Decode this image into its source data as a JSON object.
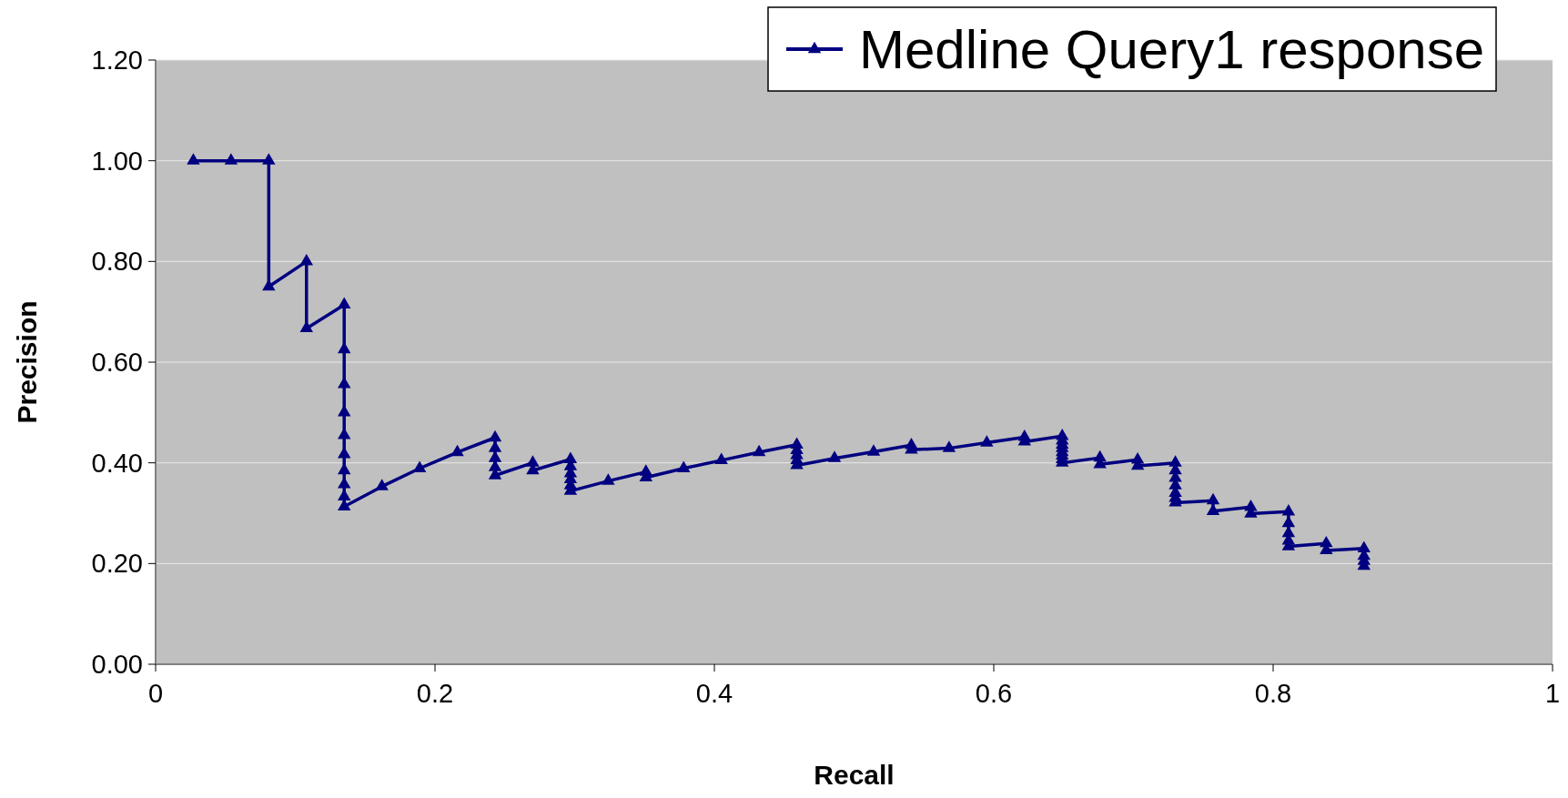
{
  "chart_data": {
    "type": "line",
    "xlabel": "Recall",
    "ylabel": "Precision",
    "xlim": [
      0,
      1
    ],
    "ylim": [
      0,
      1.2
    ],
    "xticks": [
      0,
      0.2,
      0.4,
      0.6,
      0.8,
      1
    ],
    "yticks": [
      {
        "value": 0,
        "label": "0.00"
      },
      {
        "value": 0.2,
        "label": "0.20"
      },
      {
        "value": 0.4,
        "label": "0.40"
      },
      {
        "value": 0.6,
        "label": "0.60"
      },
      {
        "value": 0.8,
        "label": "0.80"
      },
      {
        "value": 1,
        "label": "1.00"
      },
      {
        "value": 1.2,
        "label": "1.20"
      }
    ],
    "grid": "y",
    "legend": "top right",
    "marker": "triangle",
    "line_style": "solid",
    "series": [
      {
        "name": "Medline Query1 response",
        "color": "#000080",
        "x": [
          0.027,
          0.054,
          0.081,
          0.081,
          0.108,
          0.108,
          0.135,
          0.135,
          0.135,
          0.135,
          0.135,
          0.135,
          0.135,
          0.135,
          0.135,
          0.135,
          0.162,
          0.189,
          0.216,
          0.243,
          0.243,
          0.243,
          0.243,
          0.243,
          0.27,
          0.27,
          0.297,
          0.297,
          0.297,
          0.297,
          0.297,
          0.297,
          0.324,
          0.351,
          0.351,
          0.378,
          0.405,
          0.432,
          0.459,
          0.459,
          0.459,
          0.459,
          0.459,
          0.486,
          0.514,
          0.541,
          0.541,
          0.568,
          0.595,
          0.622,
          0.622,
          0.649,
          0.649,
          0.649,
          0.649,
          0.649,
          0.649,
          0.649,
          0.649,
          0.676,
          0.676,
          0.703,
          0.703,
          0.73,
          0.73,
          0.73,
          0.73,
          0.73,
          0.73,
          0.73,
          0.757,
          0.757,
          0.784,
          0.784,
          0.811,
          0.811,
          0.811,
          0.811,
          0.811,
          0.838,
          0.838,
          0.865,
          0.865,
          0.865,
          0.865
        ],
        "values": [
          1,
          1,
          1,
          0.75,
          0.8,
          0.667,
          0.714,
          0.625,
          0.556,
          0.5,
          0.455,
          0.417,
          0.385,
          0.357,
          0.333,
          0.313,
          0.353,
          0.389,
          0.421,
          0.45,
          0.429,
          0.409,
          0.391,
          0.375,
          0.4,
          0.385,
          0.407,
          0.393,
          0.379,
          0.367,
          0.355,
          0.344,
          0.364,
          0.382,
          0.371,
          0.389,
          0.405,
          0.421,
          0.436,
          0.425,
          0.415,
          0.405,
          0.395,
          0.409,
          0.422,
          0.435,
          0.426,
          0.429,
          0.44,
          0.451,
          0.442,
          0.453,
          0.444,
          0.436,
          0.429,
          0.421,
          0.414,
          0.407,
          0.4,
          0.41,
          0.397,
          0.406,
          0.394,
          0.4,
          0.385,
          0.37,
          0.355,
          0.34,
          0.33,
          0.321,
          0.325,
          0.304,
          0.312,
          0.299,
          0.303,
          0.28,
          0.26,
          0.245,
          0.234,
          0.24,
          0.226,
          0.23,
          0.215,
          0.205,
          0.195
        ]
      }
    ]
  }
}
